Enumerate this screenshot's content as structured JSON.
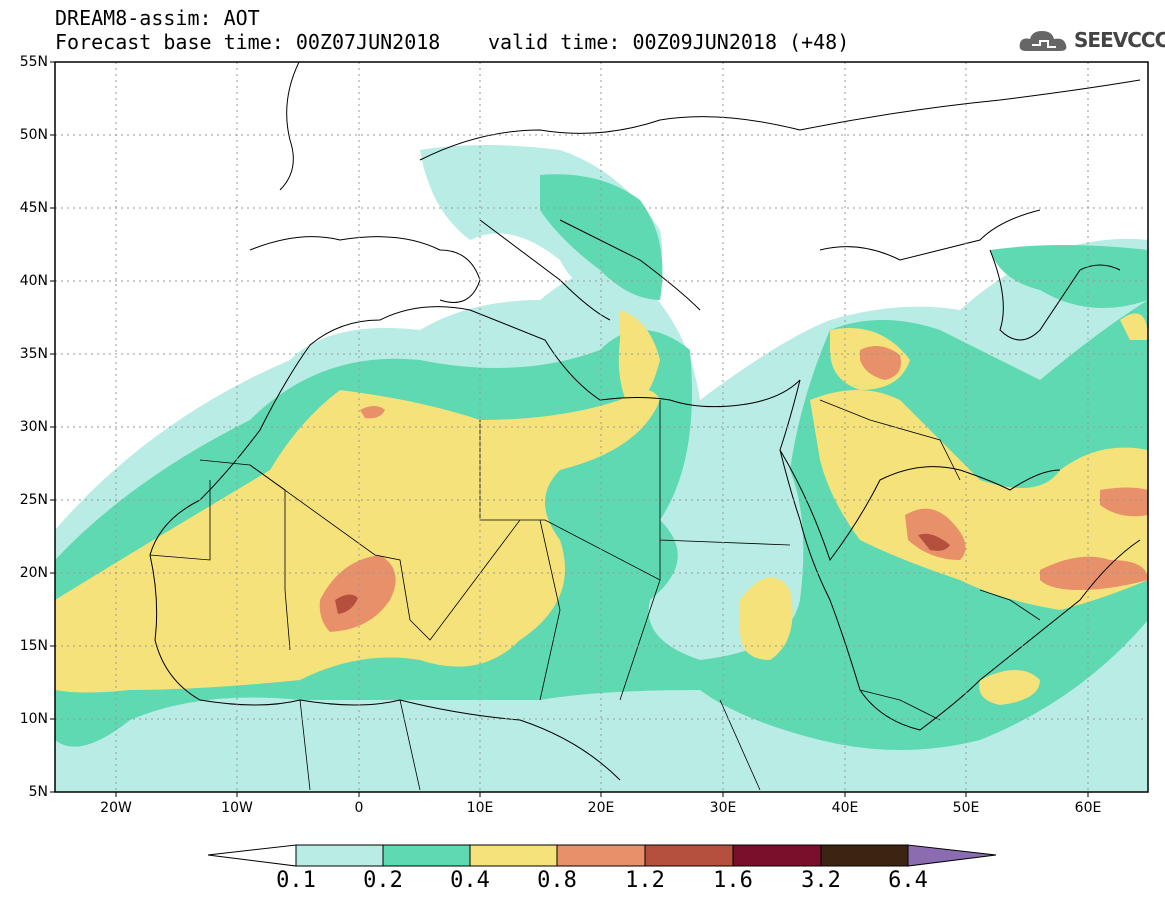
{
  "header": {
    "title_line1": "DREAM8-assim: AOT",
    "title_line2": "Forecast base time: 00Z07JUN2018",
    "valid_time": "valid time: 00Z09JUN2018 (+48)",
    "logo_text": "SEEVCCC",
    "logo_icon": "cloud-icon"
  },
  "map": {
    "lat_labels": [
      "55N",
      "50N",
      "45N",
      "40N",
      "35N",
      "30N",
      "25N",
      "20N",
      "15N",
      "10N",
      "5N"
    ],
    "lon_labels": [
      "20W",
      "10W",
      "0",
      "10E",
      "20E",
      "30E",
      "40E",
      "50E",
      "60E"
    ]
  },
  "colorbar": {
    "labels": [
      "0.1",
      "0.2",
      "0.4",
      "0.8",
      "1.2",
      "1.6",
      "3.2",
      "6.4"
    ],
    "colors": [
      "#ffffff",
      "#b8ece4",
      "#5ed9b2",
      "#f5e27a",
      "#e8906a",
      "#b5503e",
      "#7a0f2b",
      "#3b2512",
      "#8b6cb0"
    ]
  }
}
